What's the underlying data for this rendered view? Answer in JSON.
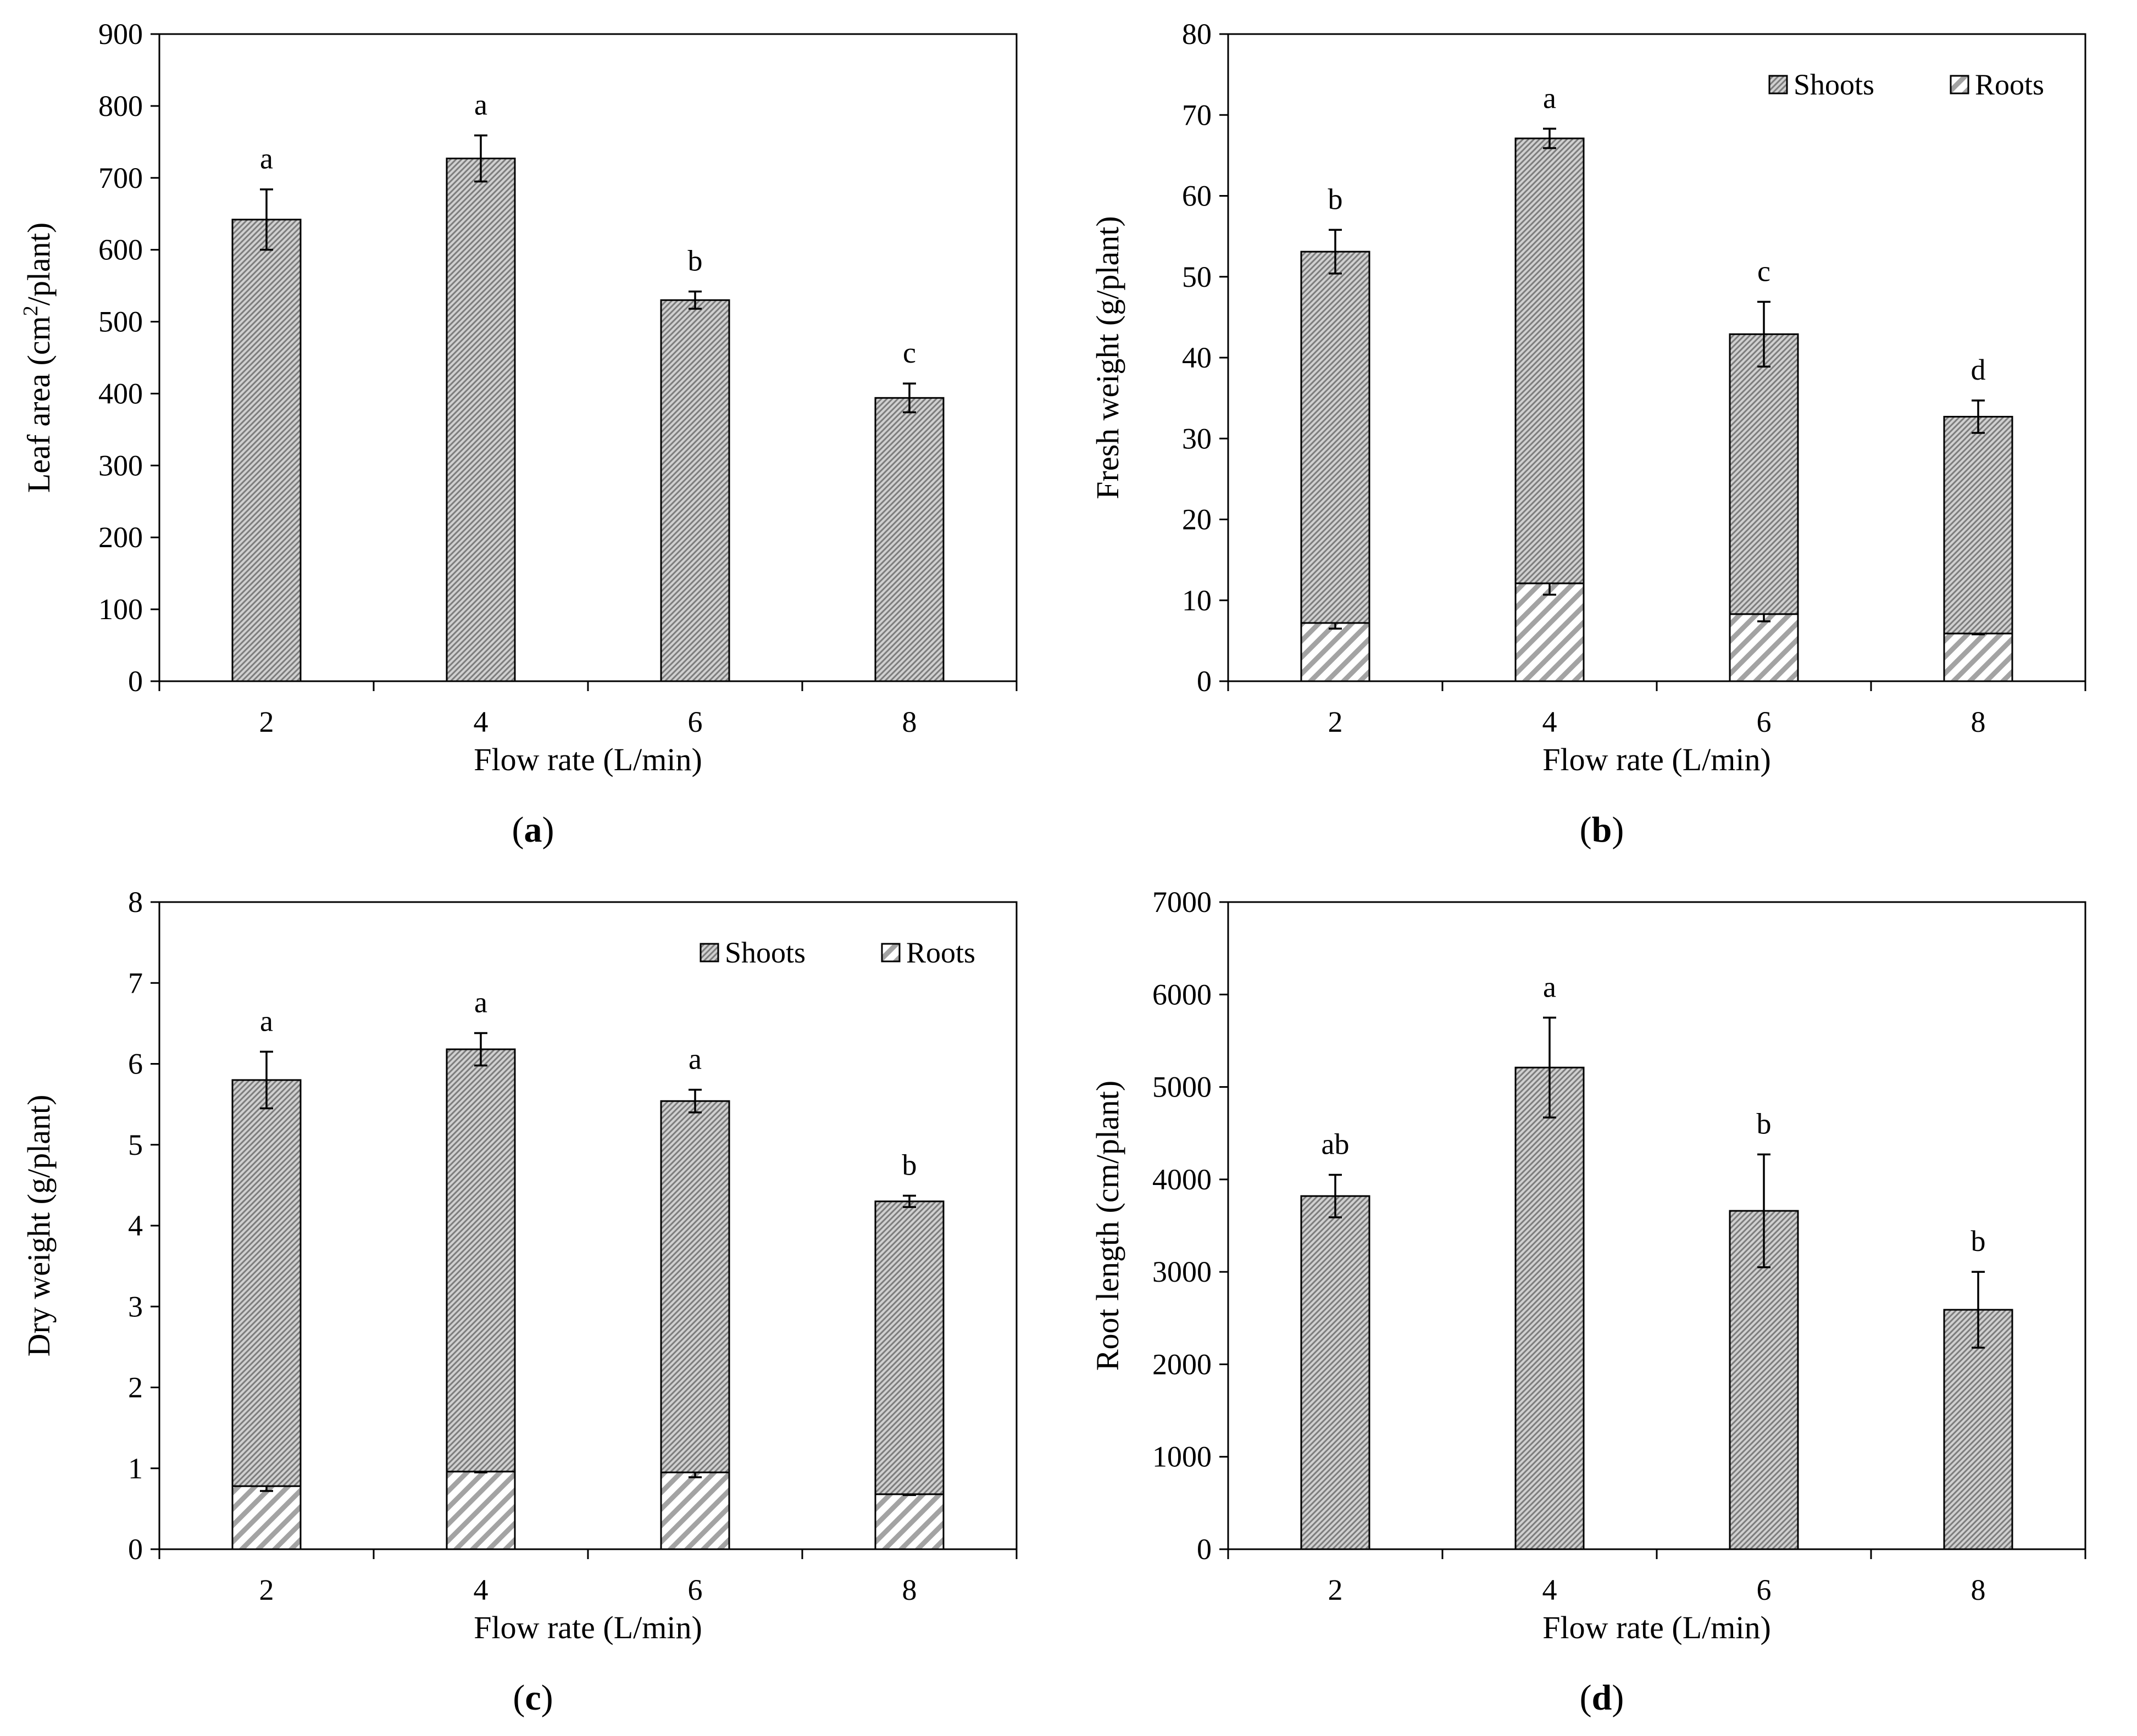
{
  "palette": {
    "bar_fill": "#a9a9a9",
    "line": "#000000",
    "background": "#ffffff"
  },
  "chart_data": [
    {
      "id": "a",
      "type": "bar",
      "label": "a",
      "x": [
        "2",
        "4",
        "6",
        "8"
      ],
      "xlabel": "Flow rate (L/min)",
      "ylabel_parts": [
        "Leaf area (cm",
        "2",
        "/plant)"
      ],
      "ylim": [
        0,
        900
      ],
      "yticks": [
        "0",
        "100",
        "200",
        "300",
        "400",
        "500",
        "600",
        "700",
        "800",
        "900"
      ],
      "series": [
        {
          "name": "Leaf area",
          "pattern": "fine",
          "values": [
            642,
            727,
            530,
            394
          ],
          "err": [
            42,
            32,
            12,
            20
          ]
        }
      ],
      "significance": [
        "a",
        "a",
        "b",
        "c"
      ],
      "legend": null
    },
    {
      "id": "b",
      "type": "stacked_bar",
      "label": "b",
      "x": [
        "2",
        "4",
        "6",
        "8"
      ],
      "xlabel": "Flow rate (L/min)",
      "ylabel_parts": [
        "Fresh weight (g/plant)"
      ],
      "ylim": [
        0,
        80
      ],
      "yticks": [
        "0",
        "10",
        "20",
        "30",
        "40",
        "50",
        "60",
        "70",
        "80"
      ],
      "series": [
        {
          "name": "Roots",
          "pattern": "coarse",
          "values": [
            7.2,
            12.1,
            8.3,
            5.9
          ],
          "err": [
            0.7,
            1.4,
            0.9,
            0.1
          ]
        },
        {
          "name": "Shoots",
          "pattern": "fine",
          "values": [
            45.9,
            55.0,
            34.6,
            26.8
          ],
          "err": [
            2.7,
            1.2,
            4.0,
            2.0
          ]
        }
      ],
      "significance": [
        "b",
        "a",
        "c",
        "d"
      ],
      "legend": {
        "position": "top-right",
        "items": [
          "Shoots",
          "Roots"
        ]
      }
    },
    {
      "id": "c",
      "type": "stacked_bar",
      "label": "c",
      "x": [
        "2",
        "4",
        "6",
        "8"
      ],
      "xlabel": "Flow rate (L/min)",
      "ylabel_parts": [
        "Dry weight (g/plant)"
      ],
      "ylim": [
        0,
        8
      ],
      "yticks": [
        "0",
        "1",
        "2",
        "3",
        "4",
        "5",
        "6",
        "7",
        "8"
      ],
      "series": [
        {
          "name": "Roots",
          "pattern": "coarse",
          "values": [
            0.78,
            0.96,
            0.95,
            0.68
          ],
          "err": [
            0.06,
            0.01,
            0.06,
            0.01
          ]
        },
        {
          "name": "Shoots",
          "pattern": "fine",
          "values": [
            5.02,
            5.22,
            4.59,
            3.62
          ],
          "err": [
            0.35,
            0.2,
            0.14,
            0.07
          ]
        }
      ],
      "significance": [
        "a",
        "a",
        "a",
        "b"
      ],
      "legend": {
        "position": "top-right",
        "items": [
          "Shoots",
          "Roots"
        ]
      }
    },
    {
      "id": "d",
      "type": "bar",
      "label": "d",
      "x": [
        "2",
        "4",
        "6",
        "8"
      ],
      "xlabel": "Flow rate (L/min)",
      "ylabel_parts": [
        "Root length (cm/plant)"
      ],
      "ylim": [
        0,
        7000
      ],
      "yticks": [
        "0",
        "1000",
        "2000",
        "3000",
        "4000",
        "5000",
        "6000",
        "7000"
      ],
      "series": [
        {
          "name": "Root length",
          "pattern": "fine",
          "values": [
            3820,
            5210,
            3660,
            2590
          ],
          "err": [
            230,
            540,
            610,
            410
          ]
        }
      ],
      "significance": [
        "ab",
        "a",
        "b",
        "b"
      ],
      "legend": null
    }
  ]
}
